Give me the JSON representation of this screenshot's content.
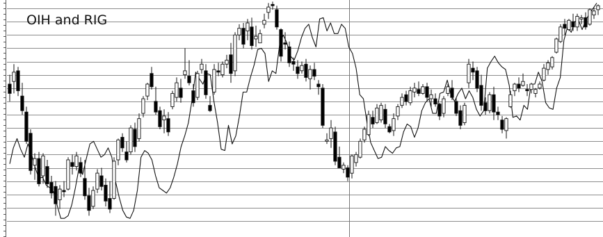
{
  "colors": {
    "background": "#ffffff",
    "grid": "#8c8c8c",
    "ink": "#111111",
    "up_fill": "#ffffff",
    "down_fill": "#000000"
  },
  "chart_data": {
    "type": "candlestick-line-overlay",
    "title": "OIH and RIG",
    "xlabel": "",
    "ylabel": "",
    "grid": "horizontal",
    "price_ylim": [
      0,
      16
    ],
    "series": [
      {
        "style": "candlestick",
        "values_ohlc": [
          [
            10.3,
            11.0,
            9.0,
            9.6
          ],
          [
            10.5,
            11.8,
            9.6,
            11.2
          ],
          [
            11.3,
            11.6,
            9.4,
            9.8
          ],
          [
            9.4,
            10.4,
            8.0,
            8.3
          ],
          [
            8.2,
            8.6,
            5.8,
            6.0
          ],
          [
            6.6,
            6.9,
            3.5,
            3.8
          ],
          [
            4.2,
            5.1,
            3.1,
            4.7
          ],
          [
            4.7,
            5.2,
            2.6,
            2.8
          ],
          [
            3.4,
            5.1,
            2.8,
            4.9
          ],
          [
            4.1,
            4.6,
            2.5,
            2.8
          ],
          [
            2.9,
            3.4,
            1.7,
            2.1
          ],
          [
            2.6,
            3.0,
            0.4,
            1.3
          ],
          [
            1.6,
            2.7,
            0.9,
            2.4
          ],
          [
            2.3,
            3.0,
            1.8,
            2.2
          ],
          [
            2.4,
            4.8,
            2.3,
            4.6
          ],
          [
            4.4,
            5.0,
            3.5,
            4.1
          ],
          [
            4.1,
            5.2,
            3.8,
            4.9
          ],
          [
            4.4,
            4.8,
            3.3,
            3.6
          ],
          [
            3.2,
            4.6,
            1.6,
            1.9
          ],
          [
            1.9,
            2.5,
            0.4,
            0.8
          ],
          [
            1.1,
            2.6,
            0.9,
            2.3
          ],
          [
            2.4,
            3.9,
            2.1,
            3.6
          ],
          [
            3.4,
            4.0,
            2.3,
            2.6
          ],
          [
            2.7,
            3.2,
            1.1,
            1.5
          ],
          [
            1.7,
            3.0,
            0.6,
            0.9
          ],
          [
            1.7,
            4.8,
            1.6,
            4.5
          ],
          [
            4.6,
            6.2,
            4.2,
            6.1
          ],
          [
            6.3,
            6.6,
            5.2,
            5.5
          ],
          [
            5.2,
            6.0,
            4.4,
            4.6
          ],
          [
            5.2,
            7.2,
            5.0,
            7.0
          ],
          [
            6.9,
            7.4,
            5.2,
            5.6
          ],
          [
            6.2,
            8.1,
            6.0,
            7.7
          ],
          [
            8.1,
            9.4,
            7.8,
            9.2
          ],
          [
            9.4,
            10.4,
            9.1,
            10.3
          ],
          [
            11.1,
            11.6,
            9.9,
            10.1
          ],
          [
            9.0,
            10.1,
            8.0,
            8.2
          ],
          [
            8.3,
            8.6,
            6.9,
            7.1
          ],
          [
            7.6,
            8.4,
            6.6,
            7.9
          ],
          [
            7.7,
            8.2,
            6.4,
            6.7
          ],
          [
            8.6,
            9.8,
            8.4,
            9.6
          ],
          [
            9.3,
            10.8,
            9.0,
            10.4
          ],
          [
            10.0,
            10.7,
            8.9,
            9.3
          ],
          [
            11.0,
            13.0,
            10.7,
            11.3
          ],
          [
            10.9,
            12.1,
            10.2,
            10.4
          ],
          [
            9.8,
            10.3,
            8.6,
            8.9
          ],
          [
            9.3,
            11.3,
            9.1,
            11.1
          ],
          [
            11.4,
            12.2,
            11.1,
            11.8
          ],
          [
            11.3,
            11.8,
            9.2,
            9.5
          ],
          [
            8.7,
            9.4,
            8.2,
            8.3
          ],
          [
            9.7,
            11.8,
            9.5,
            11.4
          ],
          [
            11.3,
            11.9,
            10.9,
            11.2
          ],
          [
            11.0,
            12.0,
            10.8,
            11.8
          ],
          [
            11.8,
            12.5,
            11.5,
            12.1
          ],
          [
            12.5,
            13.4,
            10.4,
            11.1
          ],
          [
            11.3,
            14.2,
            10.9,
            14.0
          ],
          [
            14.0,
            14.8,
            13.6,
            14.5
          ],
          [
            14.5,
            14.9,
            13.0,
            13.3
          ],
          [
            14.3,
            15.2,
            13.6,
            14.9
          ],
          [
            14.6,
            15.3,
            12.9,
            13.2
          ],
          [
            13.7,
            14.7,
            13.1,
            13.9
          ],
          [
            13.4,
            14.4,
            13.4,
            14.1
          ],
          [
            14.8,
            15.6,
            14.5,
            15.1
          ],
          [
            15.7,
            16.4,
            15.2,
            16.1
          ],
          [
            16.3,
            16.5,
            15.9,
            16.2
          ],
          [
            15.9,
            16.2,
            14.4,
            14.6
          ],
          [
            14.4,
            14.5,
            12.0,
            12.4
          ],
          [
            13.4,
            14.2,
            12.9,
            13.3
          ],
          [
            13.1,
            13.5,
            11.6,
            11.9
          ],
          [
            12.0,
            12.3,
            11.3,
            11.8
          ],
          [
            11.6,
            12.1,
            10.7,
            11.1
          ],
          [
            11.3,
            12.0,
            11.1,
            11.7
          ],
          [
            11.8,
            12.2,
            10.5,
            10.8
          ],
          [
            10.7,
            11.7,
            9.9,
            11.4
          ],
          [
            11.4,
            11.9,
            10.6,
            10.9
          ],
          [
            10.3,
            10.6,
            9.5,
            10.1
          ],
          [
            10.0,
            10.3,
            7.0,
            7.2
          ],
          [
            6.0,
            6.6,
            5.8,
            6.1
          ],
          [
            6.2,
            7.6,
            5.5,
            7.0
          ],
          [
            6.7,
            7.1,
            4.2,
            4.5
          ],
          [
            4.8,
            5.6,
            4.0,
            4.0
          ],
          [
            3.9,
            4.4,
            3.6,
            4.2
          ],
          [
            4.0,
            4.2,
            3.0,
            3.3
          ],
          [
            3.6,
            5.0,
            3.2,
            4.9
          ],
          [
            4.4,
            5.2,
            4.1,
            5.0
          ],
          [
            4.8,
            6.2,
            4.7,
            6.0
          ],
          [
            6.1,
            7.1,
            5.9,
            6.9
          ],
          [
            6.5,
            8.3,
            6.4,
            8.0
          ],
          [
            7.8,
            8.3,
            7.0,
            7.3
          ],
          [
            7.4,
            8.8,
            7.3,
            8.5
          ],
          [
            7.6,
            8.9,
            7.4,
            8.7
          ],
          [
            8.4,
            8.8,
            7.0,
            7.3
          ],
          [
            7.1,
            7.3,
            6.6,
            6.7
          ],
          [
            6.8,
            8.1,
            6.4,
            7.7
          ],
          [
            7.9,
            8.8,
            7.6,
            8.6
          ],
          [
            8.7,
            9.6,
            8.5,
            9.3
          ],
          [
            9.5,
            9.8,
            8.7,
            9.0
          ],
          [
            8.9,
            10.1,
            8.7,
            9.8
          ],
          [
            9.7,
            10.4,
            9.3,
            10.0
          ],
          [
            9.9,
            10.5,
            9.4,
            9.6
          ],
          [
            9.6,
            10.3,
            9.5,
            10.1
          ],
          [
            10.1,
            10.4,
            9.0,
            9.3
          ],
          [
            9.2,
            9.9,
            8.6,
            9.5
          ],
          [
            9.2,
            9.6,
            8.6,
            8.8
          ],
          [
            8.8,
            8.9,
            7.6,
            7.9
          ],
          [
            8.1,
            9.4,
            7.8,
            9.2
          ],
          [
            9.6,
            10.3,
            9.4,
            10.1
          ],
          [
            10.0,
            10.6,
            9.1,
            9.3
          ],
          [
            9.0,
            9.3,
            7.9,
            8.1
          ],
          [
            8.3,
            8.7,
            6.9,
            7.2
          ],
          [
            7.4,
            8.9,
            7.2,
            8.7
          ],
          [
            10.4,
            12.2,
            10.0,
            11.8
          ],
          [
            11.5,
            12.0,
            10.6,
            11.2
          ],
          [
            11.3,
            11.6,
            9.7,
            10.0
          ],
          [
            10.2,
            11.0,
            8.3,
            8.7
          ],
          [
            8.9,
            9.3,
            8.0,
            8.3
          ],
          [
            8.3,
            9.7,
            8.1,
            9.5
          ],
          [
            9.5,
            10.1,
            7.6,
            8.2
          ],
          [
            8.2,
            8.6,
            7.6,
            8.0
          ],
          [
            7.6,
            7.9,
            6.6,
            6.9
          ],
          [
            6.8,
            7.8,
            6.2,
            7.7
          ],
          [
            8.6,
            9.8,
            8.5,
            9.5
          ],
          [
            9.8,
            10.4,
            9.4,
            10.3
          ],
          [
            10.3,
            10.8,
            9.7,
            10.0
          ],
          [
            10.2,
            11.1,
            10.1,
            10.5
          ],
          [
            9.9,
            10.3,
            9.4,
            9.8
          ],
          [
            9.9,
            10.4,
            9.6,
            10.3
          ],
          [
            9.6,
            10.0,
            9.3,
            9.9
          ],
          [
            10.0,
            10.5,
            9.9,
            10.3
          ],
          [
            10.6,
            11.8,
            10.5,
            11.5
          ],
          [
            11.4,
            12.1,
            11.0,
            11.9
          ],
          [
            11.6,
            12.4,
            11.4,
            12.3
          ],
          [
            12.7,
            13.8,
            12.6,
            13.7
          ],
          [
            13.5,
            14.8,
            13.4,
            14.6
          ],
          [
            14.8,
            15.2,
            14.0,
            14.5
          ],
          [
            14.4,
            15.2,
            14.3,
            15.1
          ],
          [
            15.0,
            15.6,
            14.3,
            14.6
          ],
          [
            14.6,
            15.6,
            14.3,
            15.4
          ],
          [
            15.2,
            15.5,
            14.8,
            15.3
          ],
          [
            15.3,
            15.7,
            14.4,
            14.6
          ],
          [
            14.8,
            16.0,
            14.7,
            15.9
          ],
          [
            15.5,
            16.1,
            15.2,
            15.8
          ],
          [
            15.9,
            16.3,
            15.5,
            16.2
          ]
        ]
      },
      {
        "style": "line",
        "values": [
          4.3,
          5.5,
          6.2,
          5.4,
          4.8,
          5.8,
          5.0,
          4.0,
          3.2,
          3.3,
          2.7,
          2.5,
          2.2,
          1.2,
          0.2,
          0.2,
          0.4,
          1.2,
          2.5,
          4.0,
          3.5,
          4.7,
          5.8,
          6.0,
          5.4,
          4.8,
          5.0,
          5.5,
          4.8,
          3.0,
          1.8,
          0.8,
          0.3,
          0.2,
          0.8,
          2.3,
          4.8,
          5.3,
          5.1,
          4.6,
          3.4,
          2.5,
          2.3,
          2.1,
          2.5,
          3.3,
          4.3,
          5.6,
          6.4,
          7.4,
          9.1,
          11.2,
          10.7,
          10.3,
          11.1,
          11.0,
          9.0,
          7.4,
          5.4,
          5.3,
          7.2,
          5.8,
          6.4,
          7.9,
          9.7,
          9.7,
          10.8,
          11.7,
          12.9,
          13.0,
          12.6,
          10.5,
          11.3,
          11.1,
          13.2,
          14.0,
          13.4,
          12.4,
          12.1,
          12.8,
          13.8,
          14.5,
          14.8,
          13.8,
          13.1,
          15.2,
          15.3,
          14.3,
          14.9,
          14.1,
          14.1,
          14.8,
          14.5,
          13.1,
          12.6,
          11.5,
          9.5,
          9.2,
          7.4,
          5.9,
          5.3,
          4.7,
          4.8,
          5.6,
          5.3,
          5.1,
          5.5,
          5.6,
          6.7,
          7.3,
          7.1,
          6.3,
          7.0,
          8.3,
          8.9,
          9.2,
          8.1,
          8.1,
          9.6,
          9.7,
          10.6,
          9.5,
          9.0,
          9.6,
          10.0,
          9.2,
          9.8,
          9.3,
          8.4,
          7.9,
          8.3,
          11.5,
          12.0,
          12.4,
          11.9,
          11.6,
          11.4,
          10.2,
          7.8,
          7.9,
          7.6,
          8.7,
          8.4,
          10.3,
          10.3,
          11.2,
          10.5,
          8.9,
          8.5,
          8.4,
          10.0,
          10.8,
          13.6,
          14.6,
          14.2,
          15.0,
          15.1,
          14.4,
          15.1,
          15.6,
          16.0,
          16.4
        ]
      }
    ]
  }
}
